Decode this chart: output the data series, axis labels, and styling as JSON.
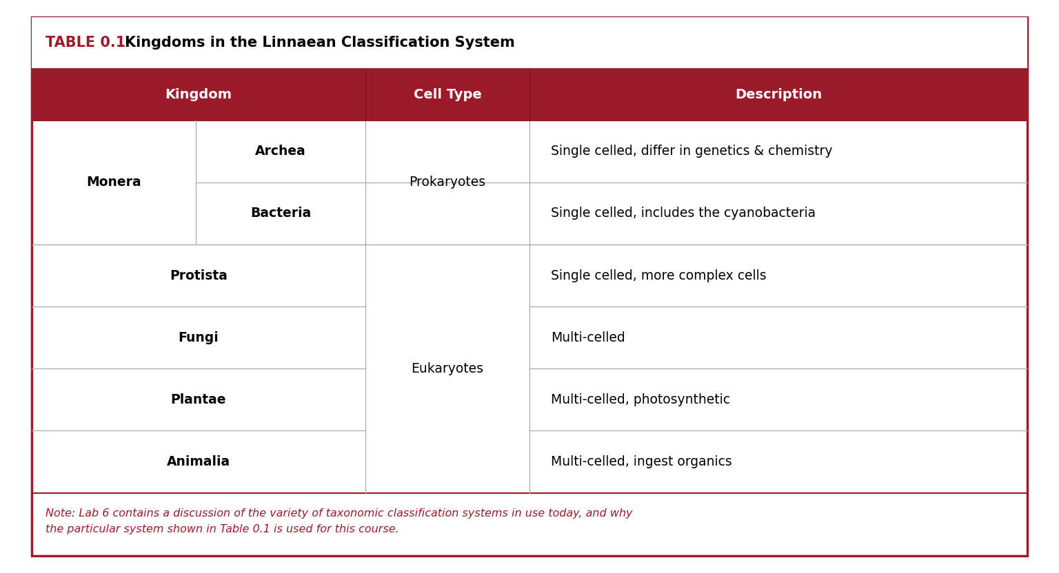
{
  "title_prefix": "TABLE 0.1",
  "title_text": "  Kingdoms in the Linnaean Classification System",
  "header_bg": "#9B1B2A",
  "header_text_color": "#FFFFFF",
  "title_bg": "#FFFFFF",
  "title_border_color": "#9B1B2A",
  "body_bg": "#FFFFFF",
  "body_text_color": "#000000",
  "line_color": "#AAAAAA",
  "outer_border_color": "#9B1B2A",
  "col_headers": [
    "Kingdom",
    "Cell Type",
    "Description"
  ],
  "note_text": "Note: Lab 6 contains a discussion of the variety of taxonomic classification systems in use today, and why\nthe particular system shown in Table 0.1 is used for this course.",
  "note_color": "#9B1B2A",
  "rows": [
    {
      "kingdom_main": "Monera",
      "kingdom_sub": [
        "Archea",
        "Bacteria"
      ],
      "cell_type": "Prokaryotes",
      "descriptions": [
        "Single celled, differ in genetics & chemistry",
        "Single celled, includes the cyanobacteria"
      ]
    },
    {
      "kingdom_main": "Protista",
      "kingdom_sub": [],
      "cell_type": "Eukaryotes",
      "descriptions": [
        "Single celled, more complex cells"
      ]
    },
    {
      "kingdom_main": "Fungi",
      "kingdom_sub": [],
      "cell_type": "",
      "descriptions": [
        "Multi-celled"
      ]
    },
    {
      "kingdom_main": "Plantae",
      "kingdom_sub": [],
      "cell_type": "",
      "descriptions": [
        "Multi-celled, photosynthetic"
      ]
    },
    {
      "kingdom_main": "Animalia",
      "kingdom_sub": [],
      "cell_type": "",
      "descriptions": [
        "Multi-celled, ingest organics"
      ]
    }
  ],
  "fig_width": 15.36,
  "fig_height": 8.32,
  "dpi": 100
}
